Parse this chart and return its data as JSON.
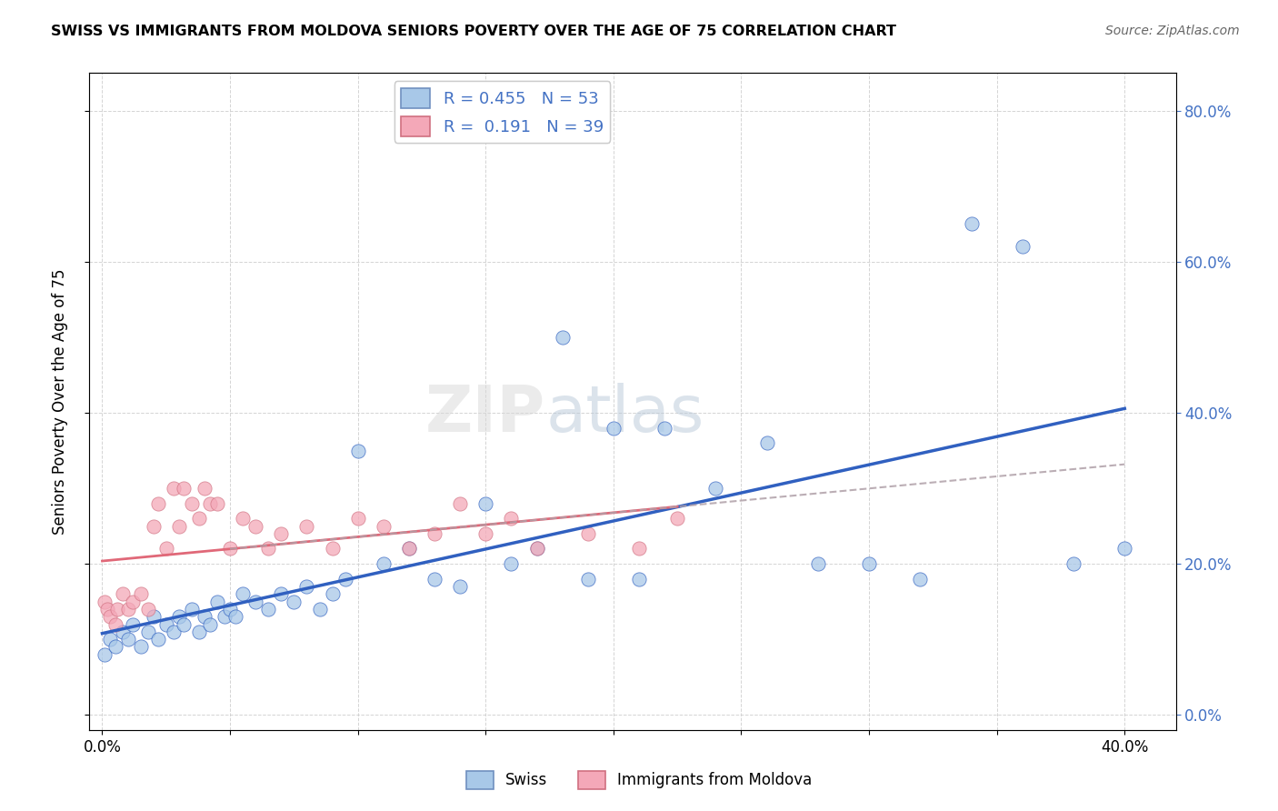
{
  "title": "SWISS VS IMMIGRANTS FROM MOLDOVA SENIORS POVERTY OVER THE AGE OF 75 CORRELATION CHART",
  "source": "Source: ZipAtlas.com",
  "ylabel": "Seniors Poverty Over the Age of 75",
  "legend_swiss": "Swiss",
  "legend_moldova": "Immigrants from Moldova",
  "R_swiss": 0.455,
  "N_swiss": 53,
  "R_moldova": 0.191,
  "N_moldova": 39,
  "xlim": [
    -0.005,
    0.42
  ],
  "ylim": [
    -0.02,
    0.85
  ],
  "yticks": [
    0.0,
    0.2,
    0.4,
    0.6,
    0.8
  ],
  "color_swiss": "#a8c8e8",
  "color_moldova": "#f4a8b8",
  "color_line_swiss": "#3060c0",
  "color_line_moldova": "#e06878",
  "color_line_moldova_ext": "#c0a0a8",
  "watermark_zip": "ZIP",
  "watermark_atlas": "atlas",
  "swiss_x": [
    0.001,
    0.003,
    0.005,
    0.008,
    0.01,
    0.012,
    0.015,
    0.018,
    0.02,
    0.022,
    0.025,
    0.028,
    0.03,
    0.032,
    0.035,
    0.038,
    0.04,
    0.042,
    0.045,
    0.048,
    0.05,
    0.052,
    0.055,
    0.06,
    0.065,
    0.07,
    0.075,
    0.08,
    0.085,
    0.09,
    0.095,
    0.1,
    0.11,
    0.12,
    0.13,
    0.14,
    0.15,
    0.16,
    0.17,
    0.18,
    0.19,
    0.2,
    0.21,
    0.22,
    0.24,
    0.26,
    0.28,
    0.3,
    0.32,
    0.34,
    0.36,
    0.38,
    0.4
  ],
  "swiss_y": [
    0.08,
    0.1,
    0.09,
    0.11,
    0.1,
    0.12,
    0.09,
    0.11,
    0.13,
    0.1,
    0.12,
    0.11,
    0.13,
    0.12,
    0.14,
    0.11,
    0.13,
    0.12,
    0.15,
    0.13,
    0.14,
    0.13,
    0.16,
    0.15,
    0.14,
    0.16,
    0.15,
    0.17,
    0.14,
    0.16,
    0.18,
    0.35,
    0.2,
    0.22,
    0.18,
    0.17,
    0.28,
    0.2,
    0.22,
    0.5,
    0.18,
    0.38,
    0.18,
    0.38,
    0.3,
    0.36,
    0.2,
    0.2,
    0.18,
    0.65,
    0.62,
    0.2,
    0.22
  ],
  "moldova_x": [
    0.001,
    0.002,
    0.003,
    0.005,
    0.006,
    0.008,
    0.01,
    0.012,
    0.015,
    0.018,
    0.02,
    0.022,
    0.025,
    0.028,
    0.03,
    0.032,
    0.035,
    0.038,
    0.04,
    0.042,
    0.045,
    0.05,
    0.055,
    0.06,
    0.065,
    0.07,
    0.08,
    0.09,
    0.1,
    0.11,
    0.12,
    0.13,
    0.14,
    0.15,
    0.16,
    0.17,
    0.19,
    0.21,
    0.225
  ],
  "moldova_y": [
    0.15,
    0.14,
    0.13,
    0.12,
    0.14,
    0.16,
    0.14,
    0.15,
    0.16,
    0.14,
    0.25,
    0.28,
    0.22,
    0.3,
    0.25,
    0.3,
    0.28,
    0.26,
    0.3,
    0.28,
    0.28,
    0.22,
    0.26,
    0.25,
    0.22,
    0.24,
    0.25,
    0.22,
    0.26,
    0.25,
    0.22,
    0.24,
    0.28,
    0.24,
    0.26,
    0.22,
    0.24,
    0.22,
    0.26
  ]
}
